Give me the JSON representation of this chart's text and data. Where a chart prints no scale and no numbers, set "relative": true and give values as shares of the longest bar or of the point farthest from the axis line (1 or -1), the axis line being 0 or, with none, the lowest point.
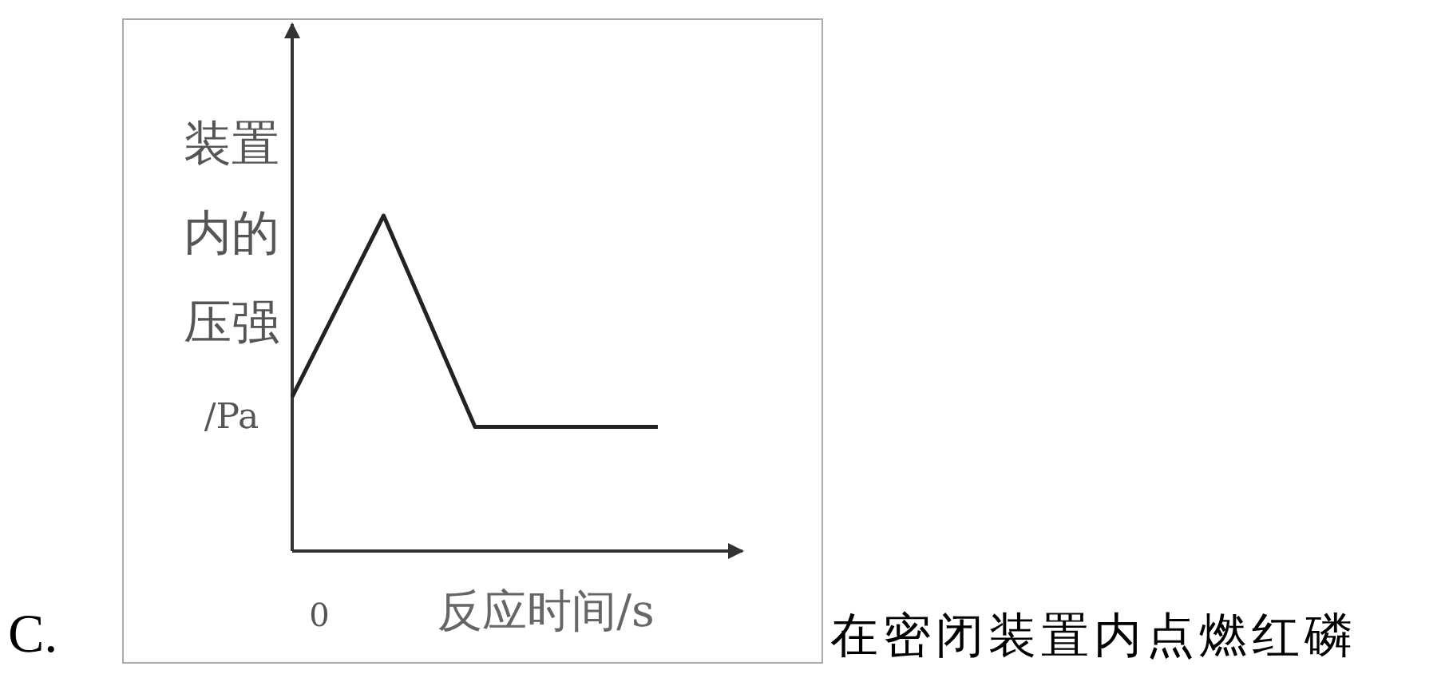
{
  "chart_data": {
    "type": "line",
    "relative": true,
    "xlabel": "反应时间/s",
    "ylabel": "装置内的压强/Pa",
    "categories": [
      null,
      null,
      null,
      null,
      null,
      null,
      null,
      null,
      null,
      null,
      null,
      null,
      null
    ],
    "series": [
      {
        "color": "#222222",
        "values": [
          0.46,
          0.64,
          0.82,
          1,
          0.79,
          0.58,
          0.37,
          0.37,
          0.37,
          0.37,
          0.37,
          0.37,
          0.37
        ]
      }
    ],
    "annotations": [
      "C.",
      "在密闭装置内点燃红磷",
      "0"
    ]
  }
}
